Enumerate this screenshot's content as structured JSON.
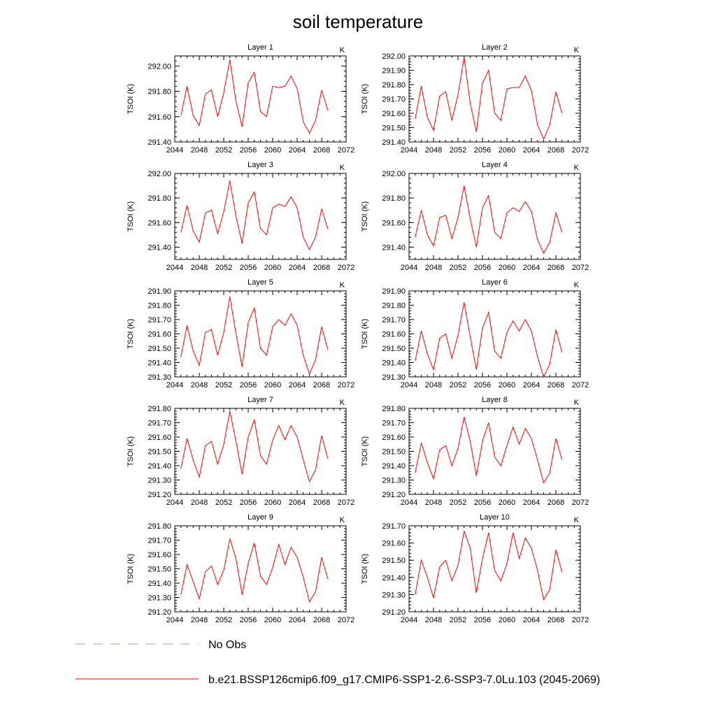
{
  "title": "soil temperature",
  "legend": [
    {
      "label": "No Obs",
      "color": "#9999ff",
      "dash": true
    },
    {
      "label": "b.e21.BSSP126cmip6.f09_g17.CMIP6-SSP1-2.6-SSP3-7.0Lu.103 (2045-2069)",
      "color": "#ff0000",
      "dash": false
    }
  ],
  "chart_data": [
    {
      "type": "line",
      "title": "Layer 1",
      "unit": "K",
      "ylabel": "TSOI  (K)",
      "xlim": [
        2044,
        2072
      ],
      "xticks": [
        "2044",
        "2048",
        "2052",
        "2056",
        "2060",
        "2064",
        "2068",
        "2072"
      ],
      "ylim": [
        291.4,
        292.08
      ],
      "yticks": [
        "291.40",
        "291.60",
        "291.80",
        "292.00"
      ],
      "x": [
        2045,
        2046,
        2047,
        2048,
        2049,
        2050,
        2051,
        2052,
        2053,
        2054,
        2055,
        2056,
        2057,
        2058,
        2059,
        2060,
        2061,
        2062,
        2063,
        2064,
        2065,
        2066,
        2067,
        2068,
        2069
      ],
      "series": [
        {
          "color": "#ff0000",
          "values": [
            291.61,
            291.84,
            291.61,
            291.53,
            291.78,
            291.81,
            291.6,
            291.79,
            292.05,
            291.72,
            291.52,
            291.87,
            291.95,
            291.64,
            291.6,
            291.84,
            291.83,
            291.84,
            291.92,
            291.82,
            291.56,
            291.47,
            291.57,
            291.81,
            291.65
          ]
        }
      ]
    },
    {
      "type": "line",
      "title": "Layer 2",
      "unit": "K",
      "ylabel": "TSOI  (K)",
      "xlim": [
        2044,
        2072
      ],
      "xticks": [
        "2044",
        "2048",
        "2052",
        "2056",
        "2060",
        "2064",
        "2068",
        "2072"
      ],
      "ylim": [
        291.4,
        292.0
      ],
      "yticks": [
        "291.40",
        "291.50",
        "291.60",
        "291.70",
        "291.80",
        "291.90",
        "292.00"
      ],
      "x": [
        2045,
        2046,
        2047,
        2048,
        2049,
        2050,
        2051,
        2052,
        2053,
        2054,
        2055,
        2056,
        2057,
        2058,
        2059,
        2060,
        2061,
        2062,
        2063,
        2064,
        2065,
        2066,
        2067,
        2068,
        2069
      ],
      "series": [
        {
          "color": "#ff0000",
          "values": [
            291.56,
            291.79,
            291.57,
            291.48,
            291.72,
            291.75,
            291.55,
            291.73,
            291.99,
            291.67,
            291.47,
            291.81,
            291.9,
            291.6,
            291.55,
            291.77,
            291.78,
            291.78,
            291.86,
            291.76,
            291.52,
            291.42,
            291.52,
            291.75,
            291.6
          ]
        }
      ]
    },
    {
      "type": "line",
      "title": "Layer 3",
      "unit": "K",
      "ylabel": "TSOI  (K)",
      "xlim": [
        2044,
        2072
      ],
      "xticks": [
        "2044",
        "2048",
        "2052",
        "2056",
        "2060",
        "2064",
        "2068",
        "2072"
      ],
      "ylim": [
        291.3,
        292.0
      ],
      "yticks": [
        "291.40",
        "291.60",
        "291.80",
        "292.00"
      ],
      "x": [
        2045,
        2046,
        2047,
        2048,
        2049,
        2050,
        2051,
        2052,
        2053,
        2054,
        2055,
        2056,
        2057,
        2058,
        2059,
        2060,
        2061,
        2062,
        2063,
        2064,
        2065,
        2066,
        2067,
        2068,
        2069
      ],
      "series": [
        {
          "color": "#ff0000",
          "values": [
            291.52,
            291.74,
            291.53,
            291.44,
            291.68,
            291.7,
            291.51,
            291.69,
            291.94,
            291.65,
            291.43,
            291.76,
            291.85,
            291.55,
            291.5,
            291.72,
            291.75,
            291.73,
            291.81,
            291.72,
            291.48,
            291.38,
            291.48,
            291.71,
            291.55
          ]
        }
      ]
    },
    {
      "type": "line",
      "title": "Layer 4",
      "unit": "K",
      "ylabel": "TSOI  (K)",
      "xlim": [
        2044,
        2072
      ],
      "xticks": [
        "2044",
        "2048",
        "2052",
        "2056",
        "2060",
        "2064",
        "2068",
        "2072"
      ],
      "ylim": [
        291.3,
        292.0
      ],
      "yticks": [
        "291.40",
        "291.60",
        "291.80",
        "292.00"
      ],
      "x": [
        2045,
        2046,
        2047,
        2048,
        2049,
        2050,
        2051,
        2052,
        2053,
        2054,
        2055,
        2056,
        2057,
        2058,
        2059,
        2060,
        2061,
        2062,
        2063,
        2064,
        2065,
        2066,
        2067,
        2068,
        2069
      ],
      "series": [
        {
          "color": "#ff0000",
          "values": [
            291.48,
            291.7,
            291.5,
            291.41,
            291.64,
            291.66,
            291.47,
            291.64,
            291.9,
            291.63,
            291.4,
            291.72,
            291.82,
            291.52,
            291.47,
            291.68,
            291.72,
            291.69,
            291.77,
            291.69,
            291.46,
            291.35,
            291.44,
            291.68,
            291.52
          ]
        }
      ]
    },
    {
      "type": "line",
      "title": "Layer 5",
      "unit": "K",
      "ylabel": "TSOI  (K)",
      "xlim": [
        2044,
        2072
      ],
      "xticks": [
        "2044",
        "2048",
        "2052",
        "2056",
        "2060",
        "2064",
        "2068",
        "2072"
      ],
      "ylim": [
        291.3,
        291.9
      ],
      "yticks": [
        "291.30",
        "291.40",
        "291.50",
        "291.60",
        "291.70",
        "291.80",
        "291.90"
      ],
      "x": [
        2045,
        2046,
        2047,
        2048,
        2049,
        2050,
        2051,
        2052,
        2053,
        2054,
        2055,
        2056,
        2057,
        2058,
        2059,
        2060,
        2061,
        2062,
        2063,
        2064,
        2065,
        2066,
        2067,
        2068,
        2069
      ],
      "series": [
        {
          "color": "#ff0000",
          "values": [
            291.44,
            291.66,
            291.48,
            291.38,
            291.61,
            291.63,
            291.45,
            291.61,
            291.86,
            291.6,
            291.37,
            291.68,
            291.78,
            291.5,
            291.45,
            291.65,
            291.7,
            291.66,
            291.74,
            291.66,
            291.45,
            291.32,
            291.42,
            291.65,
            291.49
          ]
        }
      ]
    },
    {
      "type": "line",
      "title": "Layer 6",
      "unit": "K",
      "ylabel": "TSOI  (K)",
      "xlim": [
        2044,
        2072
      ],
      "xticks": [
        "2044",
        "2048",
        "2052",
        "2056",
        "2060",
        "2064",
        "2068",
        "2072"
      ],
      "ylim": [
        291.3,
        291.9
      ],
      "yticks": [
        "291.30",
        "291.40",
        "291.50",
        "291.60",
        "291.70",
        "291.80",
        "291.90"
      ],
      "x": [
        2045,
        2046,
        2047,
        2048,
        2049,
        2050,
        2051,
        2052,
        2053,
        2054,
        2055,
        2056,
        2057,
        2058,
        2059,
        2060,
        2061,
        2062,
        2063,
        2064,
        2065,
        2066,
        2067,
        2068,
        2069
      ],
      "series": [
        {
          "color": "#ff0000",
          "values": [
            291.41,
            291.62,
            291.46,
            291.35,
            291.57,
            291.6,
            291.43,
            291.59,
            291.82,
            291.58,
            291.35,
            291.64,
            291.75,
            291.48,
            291.43,
            291.61,
            291.69,
            291.62,
            291.7,
            291.62,
            291.44,
            291.3,
            291.39,
            291.63,
            291.47
          ]
        }
      ]
    },
    {
      "type": "line",
      "title": "Layer 7",
      "unit": "K",
      "ylabel": "TSOI  (K)",
      "xlim": [
        2044,
        2072
      ],
      "xticks": [
        "2044",
        "2048",
        "2052",
        "2056",
        "2060",
        "2064",
        "2068",
        "2072"
      ],
      "ylim": [
        291.2,
        291.8
      ],
      "yticks": [
        "291.20",
        "291.30",
        "291.40",
        "291.50",
        "291.60",
        "291.70",
        "291.80"
      ],
      "x": [
        2045,
        2046,
        2047,
        2048,
        2049,
        2050,
        2051,
        2052,
        2053,
        2054,
        2055,
        2056,
        2057,
        2058,
        2059,
        2060,
        2061,
        2062,
        2063,
        2064,
        2065,
        2066,
        2067,
        2068,
        2069
      ],
      "series": [
        {
          "color": "#ff0000",
          "values": [
            291.38,
            291.59,
            291.44,
            291.32,
            291.54,
            291.57,
            291.41,
            291.55,
            291.78,
            291.57,
            291.34,
            291.6,
            291.72,
            291.47,
            291.41,
            291.58,
            291.68,
            291.58,
            291.68,
            291.6,
            291.44,
            291.29,
            291.37,
            291.61,
            291.45
          ]
        }
      ]
    },
    {
      "type": "line",
      "title": "Layer 8",
      "unit": "K",
      "ylabel": "TSOI  (K)",
      "xlim": [
        2044,
        2072
      ],
      "xticks": [
        "2044",
        "2048",
        "2052",
        "2056",
        "2060",
        "2064",
        "2068",
        "2072"
      ],
      "ylim": [
        291.2,
        291.8
      ],
      "yticks": [
        "291.20",
        "291.30",
        "291.40",
        "291.50",
        "291.60",
        "291.70",
        "291.80"
      ],
      "x": [
        2045,
        2046,
        2047,
        2048,
        2049,
        2050,
        2051,
        2052,
        2053,
        2054,
        2055,
        2056,
        2057,
        2058,
        2059,
        2060,
        2061,
        2062,
        2063,
        2064,
        2065,
        2066,
        2067,
        2068,
        2069
      ],
      "series": [
        {
          "color": "#ff0000",
          "values": [
            291.35,
            291.56,
            291.42,
            291.31,
            291.51,
            291.54,
            291.4,
            291.52,
            291.74,
            291.57,
            291.33,
            291.57,
            291.7,
            291.46,
            291.4,
            291.54,
            291.67,
            291.55,
            291.66,
            291.59,
            291.44,
            291.28,
            291.35,
            291.59,
            291.44
          ]
        }
      ]
    },
    {
      "type": "line",
      "title": "Layer 9",
      "unit": "K",
      "ylabel": "TSOI  (K)",
      "xlim": [
        2044,
        2072
      ],
      "xticks": [
        "2044",
        "2048",
        "2052",
        "2056",
        "2060",
        "2064",
        "2068",
        "2072"
      ],
      "ylim": [
        291.2,
        291.8
      ],
      "yticks": [
        "291.20",
        "291.30",
        "291.40",
        "291.50",
        "291.60",
        "291.70",
        "291.80"
      ],
      "x": [
        2045,
        2046,
        2047,
        2048,
        2049,
        2050,
        2051,
        2052,
        2053,
        2054,
        2055,
        2056,
        2057,
        2058,
        2059,
        2060,
        2061,
        2062,
        2063,
        2064,
        2065,
        2066,
        2067,
        2068,
        2069
      ],
      "series": [
        {
          "color": "#ff0000",
          "values": [
            291.32,
            291.53,
            291.41,
            291.29,
            291.48,
            291.52,
            291.39,
            291.49,
            291.71,
            291.57,
            291.32,
            291.54,
            291.68,
            291.45,
            291.39,
            291.51,
            291.67,
            291.53,
            291.65,
            291.58,
            291.44,
            291.27,
            291.34,
            291.58,
            291.43
          ]
        }
      ]
    },
    {
      "type": "line",
      "title": "Layer 10",
      "unit": "K",
      "ylabel": "TSOI  (K)",
      "xlim": [
        2044,
        2072
      ],
      "xticks": [
        "2044",
        "2048",
        "2052",
        "2056",
        "2060",
        "2064",
        "2068",
        "2072"
      ],
      "ylim": [
        291.2,
        291.7
      ],
      "yticks": [
        "291.20",
        "291.30",
        "291.40",
        "291.50",
        "291.60",
        "291.70"
      ],
      "x": [
        2045,
        2046,
        2047,
        2048,
        2049,
        2050,
        2051,
        2052,
        2053,
        2054,
        2055,
        2056,
        2057,
        2058,
        2059,
        2060,
        2061,
        2062,
        2063,
        2064,
        2065,
        2066,
        2067,
        2068,
        2069
      ],
      "series": [
        {
          "color": "#ff0000",
          "values": [
            291.3,
            291.5,
            291.4,
            291.28,
            291.46,
            291.5,
            291.38,
            291.47,
            291.67,
            291.57,
            291.31,
            291.51,
            291.66,
            291.44,
            291.38,
            291.48,
            291.66,
            291.51,
            291.63,
            291.57,
            291.44,
            291.27,
            291.33,
            291.56,
            291.43
          ]
        }
      ]
    }
  ]
}
